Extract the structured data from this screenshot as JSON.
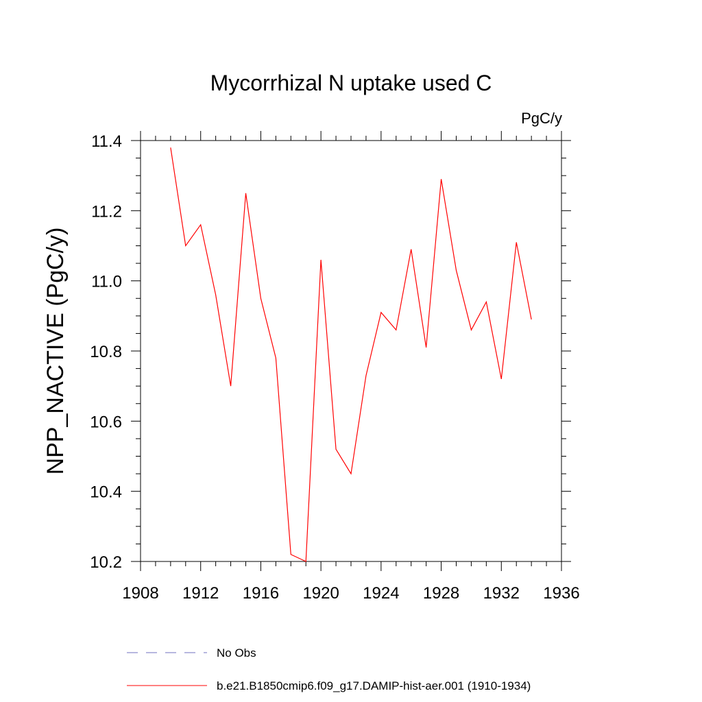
{
  "chart_data": {
    "type": "line",
    "title": "Mycorrhizal N uptake used C",
    "units": "PgC/y",
    "xlabel": "",
    "ylabel": "NPP_NACTIVE  (PgC/y)",
    "xlim": [
      1908,
      1936
    ],
    "ylim": [
      10.2,
      11.4
    ],
    "x_ticks": [
      1908,
      1912,
      1916,
      1920,
      1924,
      1928,
      1932,
      1936
    ],
    "x_tick_labels": [
      "1908",
      "1912",
      "1916",
      "1920",
      "1924",
      "1928",
      "1932",
      "1936"
    ],
    "y_ticks": [
      10.2,
      10.4,
      10.6,
      10.8,
      11.0,
      11.2,
      11.4
    ],
    "y_tick_labels": [
      "10.2",
      "10.4",
      "10.6",
      "10.8",
      "11.0",
      "11.2",
      "11.4"
    ],
    "grid": false,
    "legend_position": "bottom",
    "series": [
      {
        "name": "b.e21.B1850cmip6.f09_g17.DAMIP-hist-aer.001 (1910-1934)",
        "color": "#ff0000",
        "style": "solid",
        "x": [
          1910,
          1911,
          1912,
          1913,
          1914,
          1915,
          1916,
          1917,
          1918,
          1919,
          1920,
          1921,
          1922,
          1923,
          1924,
          1925,
          1926,
          1927,
          1928,
          1929,
          1930,
          1931,
          1932,
          1933,
          1934
        ],
        "values": [
          11.38,
          11.1,
          11.16,
          10.96,
          10.7,
          11.25,
          10.95,
          10.78,
          10.22,
          10.2,
          11.06,
          10.52,
          10.45,
          10.73,
          10.91,
          10.86,
          11.09,
          10.81,
          11.29,
          11.03,
          10.86,
          10.94,
          10.72,
          11.11,
          10.89
        ]
      }
    ],
    "legend": [
      {
        "label": "No Obs",
        "color": "#6f6fbf",
        "style": "dashed"
      },
      {
        "label": "b.e21.B1850cmip6.f09_g17.DAMIP-hist-aer.001 (1910-1934)",
        "color": "#ff0000",
        "style": "solid"
      }
    ]
  }
}
